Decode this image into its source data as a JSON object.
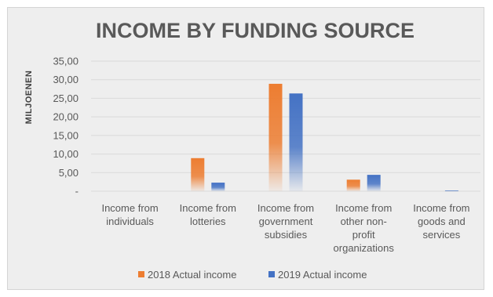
{
  "chart_data": {
    "type": "bar",
    "title": "INCOME BY FUNDING SOURCE",
    "ylabel": "MILJOENEN",
    "xlabel": "",
    "ylim": [
      0,
      35
    ],
    "yticks": [
      0,
      5,
      10,
      15,
      20,
      25,
      30,
      35
    ],
    "ytick_labels": [
      "-",
      "5,00",
      "10,00",
      "15,00",
      "20,00",
      "25,00",
      "30,00",
      "35,00"
    ],
    "categories": [
      [
        "Income from",
        "individuals"
      ],
      [
        "Income from",
        "lotteries"
      ],
      [
        "Income from",
        "government",
        "subsidies"
      ],
      [
        "Income from",
        "other non-",
        "profit",
        "organizations"
      ],
      [
        "Income from",
        "goods and",
        "services"
      ]
    ],
    "series": [
      {
        "name": "2018 Actual income",
        "color": "#ed7d31",
        "values": [
          0.0,
          8.9,
          28.9,
          3.1,
          0.0
        ]
      },
      {
        "name": "2019 Actual income",
        "color": "#4472c4",
        "values": [
          0.0,
          2.3,
          26.3,
          4.4,
          0.2
        ]
      }
    ],
    "grid": true,
    "legend_position": "bottom",
    "bar_style": "gradient fading to white at base"
  }
}
